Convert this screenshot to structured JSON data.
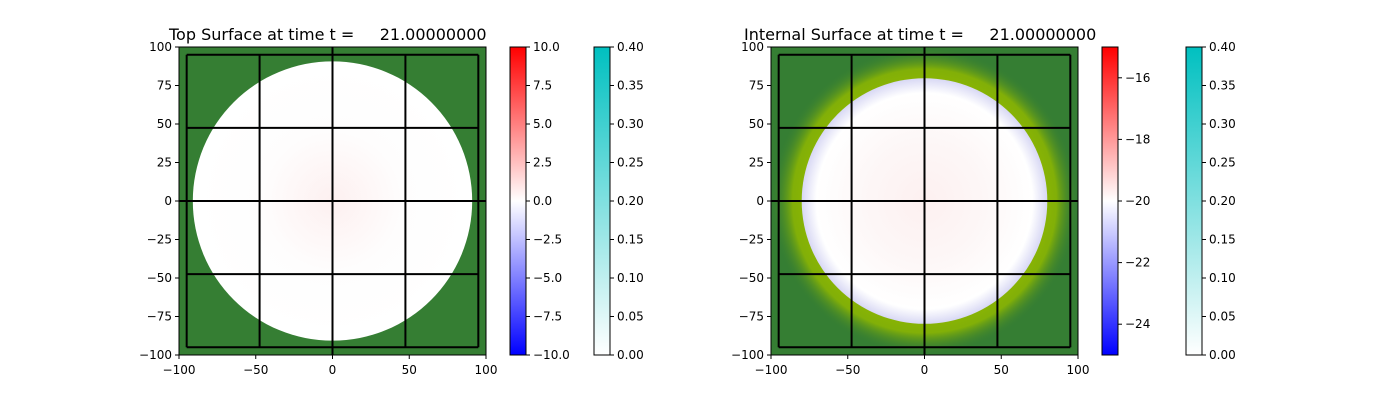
{
  "chart_data": [
    {
      "type": "heatmap",
      "title": "Top Surface at time t =     21.00000000",
      "xlim": [
        -100,
        100
      ],
      "ylim": [
        -100,
        100
      ],
      "x_ticks": [
        "−100",
        "−50",
        "0",
        "50",
        "100"
      ],
      "y_ticks": [
        "100",
        "75",
        "50",
        "25",
        "0",
        "−25",
        "−50",
        "−75",
        "−100"
      ],
      "background_color": "#357e33",
      "wet_region": {
        "shape": "disk",
        "radius": 91,
        "center": [
          0,
          0
        ],
        "color": "#fefdfd",
        "halo_color": null
      },
      "grid_patches_lines": [
        -95,
        -47.5,
        0,
        47.5,
        95
      ],
      "colorbars": [
        {
          "name": "surface",
          "range": [
            -10.0,
            10.0
          ],
          "cmap": [
            "#0000ff",
            "#ffffff",
            "#ff0000"
          ],
          "tick_labels": [
            "10.0",
            "7.5",
            "5.0",
            "2.5",
            "0.0",
            "−2.5",
            "−5.0",
            "−7.5",
            "−10.0"
          ]
        },
        {
          "name": "depth",
          "range": [
            0.0,
            0.4
          ],
          "cmap": [
            "#ffffff",
            "#00c0c0"
          ],
          "tick_labels": [
            "0.40",
            "0.35",
            "0.30",
            "0.25",
            "0.20",
            "0.15",
            "0.10",
            "0.05",
            "0.00"
          ]
        }
      ]
    },
    {
      "type": "heatmap",
      "title": "Internal Surface at time t =     21.00000000",
      "xlim": [
        -100,
        100
      ],
      "ylim": [
        -100,
        100
      ],
      "x_ticks": [
        "−100",
        "−50",
        "0",
        "50",
        "100"
      ],
      "y_ticks": [
        "100",
        "75",
        "50",
        "25",
        "0",
        "−25",
        "−50",
        "−75",
        "−100"
      ],
      "background_color": "#357e33",
      "wet_region": {
        "shape": "disk",
        "radius": 80,
        "center": [
          0,
          0
        ],
        "color": "#fdf7f7",
        "halo_color": "#8fb800"
      },
      "grid_patches_lines": [
        -95,
        -47.5,
        0,
        47.5,
        95
      ],
      "colorbars": [
        {
          "name": "surface",
          "range": [
            -25,
            -15
          ],
          "cmap": [
            "#0000ff",
            "#ffffff",
            "#ff0000"
          ],
          "tick_labels": [
            "−16",
            "−18",
            "−20",
            "−22",
            "−24"
          ],
          "tick_values": [
            -16,
            -18,
            -20,
            -22,
            -24
          ]
        },
        {
          "name": "depth",
          "range": [
            0.0,
            0.4
          ],
          "cmap": [
            "#ffffff",
            "#00c0c0"
          ],
          "tick_labels": [
            "0.40",
            "0.35",
            "0.30",
            "0.25",
            "0.20",
            "0.15",
            "0.10",
            "0.05",
            "0.00"
          ]
        }
      ]
    }
  ]
}
